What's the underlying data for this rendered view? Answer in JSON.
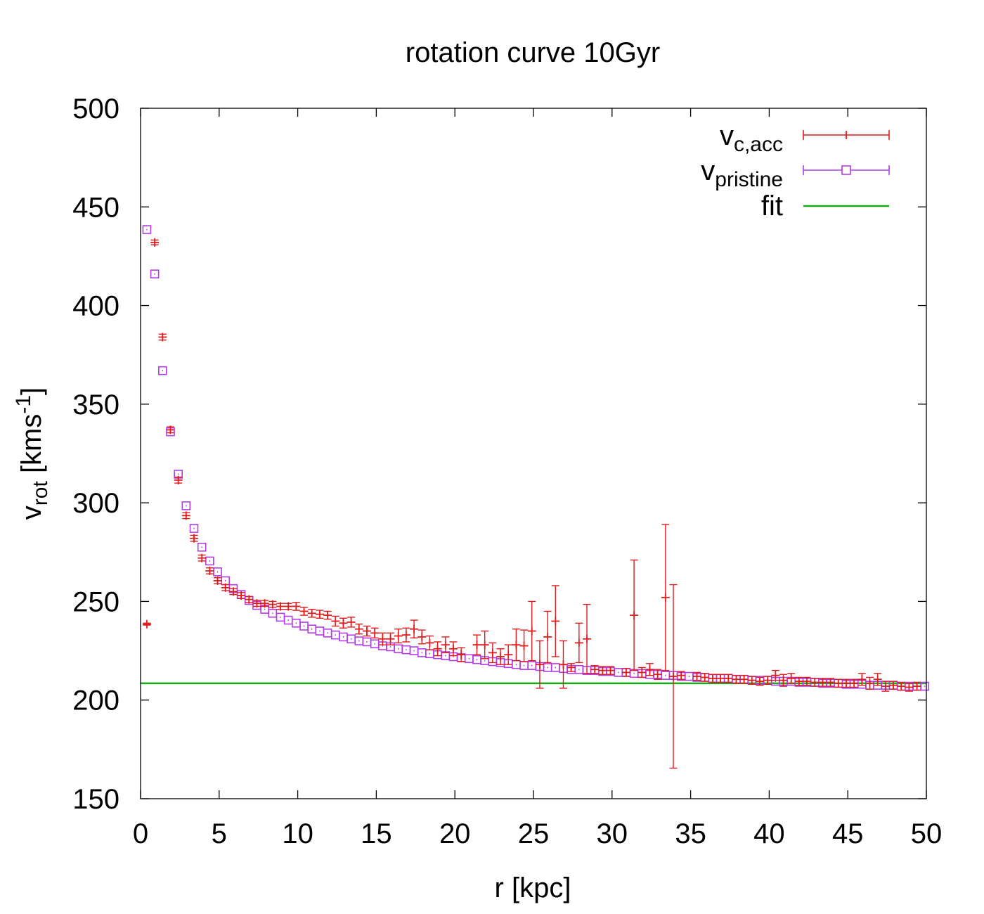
{
  "chart_data": {
    "type": "scatter",
    "title": "rotation curve 10Gyr",
    "xlabel": {
      "base": "r [kpc]"
    },
    "ylabel": {
      "base": "v",
      "sub": "rot",
      "unit_pre": " [kms",
      "unit_sup": "-1",
      "unit_post": "]"
    },
    "xlim": [
      0,
      50
    ],
    "ylim": [
      150,
      500
    ],
    "xticks": [
      0,
      5,
      10,
      15,
      20,
      25,
      30,
      35,
      40,
      45,
      50
    ],
    "yticks": [
      150,
      200,
      250,
      300,
      350,
      400,
      450,
      500
    ],
    "grid": false,
    "legend_position": "top-right",
    "series": [
      {
        "name_base": "v",
        "name_sub": "c,acc",
        "style": "errorbars-plus",
        "color": "#e31a1c",
        "points": [
          [
            0.4,
            238.5,
            0.5
          ],
          [
            0.9,
            432.0,
            1.2
          ],
          [
            1.4,
            384.0,
            1.5
          ],
          [
            1.9,
            337.0,
            1.5
          ],
          [
            2.4,
            311.5,
            1.5
          ],
          [
            2.9,
            293.5,
            1.5
          ],
          [
            3.4,
            282.0,
            1.5
          ],
          [
            3.9,
            272.0,
            1.5
          ],
          [
            4.4,
            265.5,
            1.5
          ],
          [
            4.9,
            260.5,
            1.5
          ],
          [
            5.4,
            257.0,
            1.5
          ],
          [
            5.9,
            255.0,
            1.5
          ],
          [
            6.4,
            253.0,
            1.5
          ],
          [
            6.9,
            251.0,
            1.5
          ],
          [
            7.4,
            249.0,
            1.5
          ],
          [
            7.9,
            249.0,
            1.5
          ],
          [
            8.4,
            248.5,
            1.5
          ],
          [
            8.9,
            247.5,
            1.5
          ],
          [
            9.4,
            247.5,
            1.5
          ],
          [
            9.9,
            247.5,
            2.0
          ],
          [
            10.4,
            245.0,
            2.0
          ],
          [
            10.9,
            244.0,
            2.0
          ],
          [
            11.4,
            243.5,
            2.0
          ],
          [
            11.9,
            243.0,
            2.0
          ],
          [
            12.4,
            240.0,
            2.5
          ],
          [
            12.9,
            239.0,
            2.5
          ],
          [
            13.4,
            239.5,
            2.5
          ],
          [
            13.9,
            236.0,
            2.5
          ],
          [
            14.4,
            235.0,
            2.5
          ],
          [
            14.9,
            234.0,
            2.5
          ],
          [
            15.4,
            231.0,
            3.0
          ],
          [
            15.9,
            231.0,
            3.0
          ],
          [
            16.4,
            232.5,
            3.5
          ],
          [
            16.9,
            233.0,
            3.5
          ],
          [
            17.4,
            236.0,
            4.5
          ],
          [
            17.9,
            232.0,
            3.5
          ],
          [
            18.4,
            229.0,
            3.5
          ],
          [
            18.9,
            226.0,
            3.5
          ],
          [
            19.4,
            228.0,
            4.0
          ],
          [
            19.9,
            226.0,
            3.5
          ],
          [
            20.4,
            223.0,
            3.5
          ],
          [
            21.4,
            228.0,
            5.0
          ],
          [
            21.9,
            228.0,
            7.0
          ],
          [
            22.4,
            224.0,
            5.0
          ],
          [
            22.9,
            222.0,
            4.0
          ],
          [
            23.4,
            223.0,
            5.0
          ],
          [
            23.9,
            228.0,
            8.0
          ],
          [
            24.4,
            227.5,
            8.0
          ],
          [
            24.9,
            235.0,
            15.0
          ],
          [
            25.4,
            218.0,
            12.0
          ],
          [
            25.9,
            232.0,
            13.0
          ],
          [
            26.4,
            240.0,
            18.0
          ],
          [
            26.9,
            218.0,
            12.0
          ],
          [
            27.4,
            216.5,
            2.0
          ],
          [
            27.9,
            229.0,
            10.0
          ],
          [
            28.4,
            231.0,
            17.5
          ],
          [
            28.9,
            215.5,
            2.0
          ],
          [
            29.4,
            215.0,
            2.0
          ],
          [
            29.9,
            215.0,
            2.0
          ],
          [
            30.9,
            214.0,
            2.0
          ],
          [
            31.4,
            243.0,
            28.0
          ],
          [
            31.9,
            214.0,
            2.5
          ],
          [
            32.4,
            215.5,
            3.0
          ],
          [
            32.9,
            213.0,
            2.5
          ],
          [
            33.4,
            252.0,
            37.0
          ],
          [
            33.9,
            212.0,
            46.5
          ],
          [
            34.4,
            212.5,
            2.0
          ],
          [
            35.4,
            212.0,
            2.0
          ],
          [
            35.9,
            211.5,
            2.0
          ],
          [
            36.4,
            211.0,
            2.0
          ],
          [
            36.9,
            211.0,
            2.0
          ],
          [
            37.4,
            211.0,
            2.0
          ],
          [
            37.9,
            210.5,
            2.0
          ],
          [
            38.4,
            210.5,
            2.0
          ],
          [
            38.9,
            210.0,
            2.0
          ],
          [
            39.4,
            209.5,
            2.0
          ],
          [
            39.9,
            210.0,
            2.0
          ],
          [
            40.4,
            212.5,
            2.5
          ],
          [
            40.9,
            210.0,
            3.0
          ],
          [
            41.4,
            211.0,
            2.5
          ],
          [
            41.9,
            209.5,
            2.0
          ],
          [
            42.4,
            209.5,
            2.0
          ],
          [
            42.9,
            209.0,
            2.0
          ],
          [
            43.4,
            209.0,
            2.0
          ],
          [
            43.9,
            209.0,
            2.0
          ],
          [
            44.4,
            208.5,
            2.0
          ],
          [
            44.9,
            208.5,
            2.0
          ],
          [
            45.4,
            208.5,
            2.0
          ],
          [
            45.9,
            210.5,
            3.0
          ],
          [
            46.4,
            208.5,
            3.0
          ],
          [
            46.9,
            210.5,
            3.0
          ],
          [
            47.4,
            207.0,
            2.5
          ],
          [
            47.9,
            207.5,
            2.0
          ],
          [
            48.4,
            207.0,
            2.0
          ],
          [
            48.9,
            206.5,
            2.0
          ],
          [
            49.4,
            207.0,
            2.0
          ]
        ]
      },
      {
        "name_base": "v",
        "name_sub": "pristine",
        "style": "squares",
        "color": "#b23ce8",
        "points": [
          [
            0.4,
            438.5
          ],
          [
            0.9,
            416.0
          ],
          [
            1.4,
            367.0
          ],
          [
            1.9,
            336.0
          ],
          [
            2.4,
            314.5
          ],
          [
            2.9,
            298.5
          ],
          [
            3.4,
            287.0
          ],
          [
            3.9,
            277.5
          ],
          [
            4.4,
            270.5
          ],
          [
            4.9,
            265.0
          ],
          [
            5.4,
            260.5
          ],
          [
            5.9,
            256.5
          ],
          [
            6.4,
            253.5
          ],
          [
            6.9,
            250.5
          ],
          [
            7.4,
            248.0
          ],
          [
            7.9,
            246.0
          ],
          [
            8.4,
            244.0
          ],
          [
            8.9,
            242.0
          ],
          [
            9.4,
            240.5
          ],
          [
            9.9,
            239.0
          ],
          [
            10.4,
            237.5
          ],
          [
            10.9,
            236.0
          ],
          [
            11.4,
            235.0
          ],
          [
            11.9,
            234.0
          ],
          [
            12.4,
            233.0
          ],
          [
            12.9,
            232.0
          ],
          [
            13.4,
            231.0
          ],
          [
            13.9,
            230.0
          ],
          [
            14.4,
            229.5
          ],
          [
            14.9,
            228.5
          ],
          [
            15.4,
            227.5
          ],
          [
            15.9,
            227.0
          ],
          [
            16.4,
            226.0
          ],
          [
            16.9,
            225.5
          ],
          [
            17.4,
            225.0
          ],
          [
            17.9,
            224.0
          ],
          [
            18.4,
            223.5
          ],
          [
            18.9,
            223.0
          ],
          [
            19.4,
            222.5
          ],
          [
            19.9,
            222.0
          ],
          [
            20.4,
            221.5
          ],
          [
            20.9,
            221.0
          ],
          [
            21.4,
            220.5
          ],
          [
            21.9,
            220.0
          ],
          [
            22.4,
            219.5
          ],
          [
            22.9,
            219.0
          ],
          [
            23.4,
            218.5
          ],
          [
            23.9,
            218.0
          ],
          [
            24.4,
            217.5
          ],
          [
            24.9,
            217.5
          ],
          [
            25.4,
            217.0
          ],
          [
            25.9,
            216.5
          ],
          [
            26.4,
            216.5
          ],
          [
            26.9,
            216.0
          ],
          [
            27.4,
            215.5
          ],
          [
            27.9,
            215.5
          ],
          [
            28.4,
            215.0
          ],
          [
            28.9,
            215.0
          ],
          [
            29.4,
            214.5
          ],
          [
            29.9,
            214.5
          ],
          [
            30.4,
            214.0
          ],
          [
            30.9,
            214.0
          ],
          [
            31.4,
            213.5
          ],
          [
            31.9,
            213.5
          ],
          [
            32.4,
            213.0
          ],
          [
            32.9,
            213.0
          ],
          [
            33.4,
            212.5
          ],
          [
            33.9,
            212.5
          ],
          [
            34.4,
            212.0
          ],
          [
            34.9,
            212.0
          ],
          [
            35.4,
            211.5
          ],
          [
            35.9,
            211.5
          ],
          [
            36.4,
            211.0
          ],
          [
            36.9,
            211.0
          ],
          [
            37.4,
            211.0
          ],
          [
            37.9,
            210.5
          ],
          [
            38.4,
            210.5
          ],
          [
            38.9,
            210.0
          ],
          [
            39.4,
            210.0
          ],
          [
            39.9,
            210.0
          ],
          [
            40.4,
            209.5
          ],
          [
            40.9,
            209.5
          ],
          [
            41.4,
            209.5
          ],
          [
            41.9,
            209.0
          ],
          [
            42.4,
            209.0
          ],
          [
            42.9,
            209.0
          ],
          [
            43.4,
            208.5
          ],
          [
            43.9,
            208.5
          ],
          [
            44.4,
            208.5
          ],
          [
            44.9,
            208.0
          ],
          [
            45.4,
            208.0
          ],
          [
            45.9,
            208.0
          ],
          [
            46.4,
            207.5
          ],
          [
            46.9,
            207.5
          ],
          [
            47.4,
            207.5
          ],
          [
            47.9,
            207.5
          ],
          [
            48.4,
            207.0
          ],
          [
            48.9,
            207.0
          ],
          [
            49.4,
            207.0
          ],
          [
            49.9,
            207.0
          ]
        ]
      },
      {
        "name_base": "fit",
        "name_sub": "",
        "style": "line",
        "color": "#1aab1a",
        "x": [
          0,
          50
        ],
        "y": [
          208.5,
          208.5
        ]
      }
    ]
  }
}
